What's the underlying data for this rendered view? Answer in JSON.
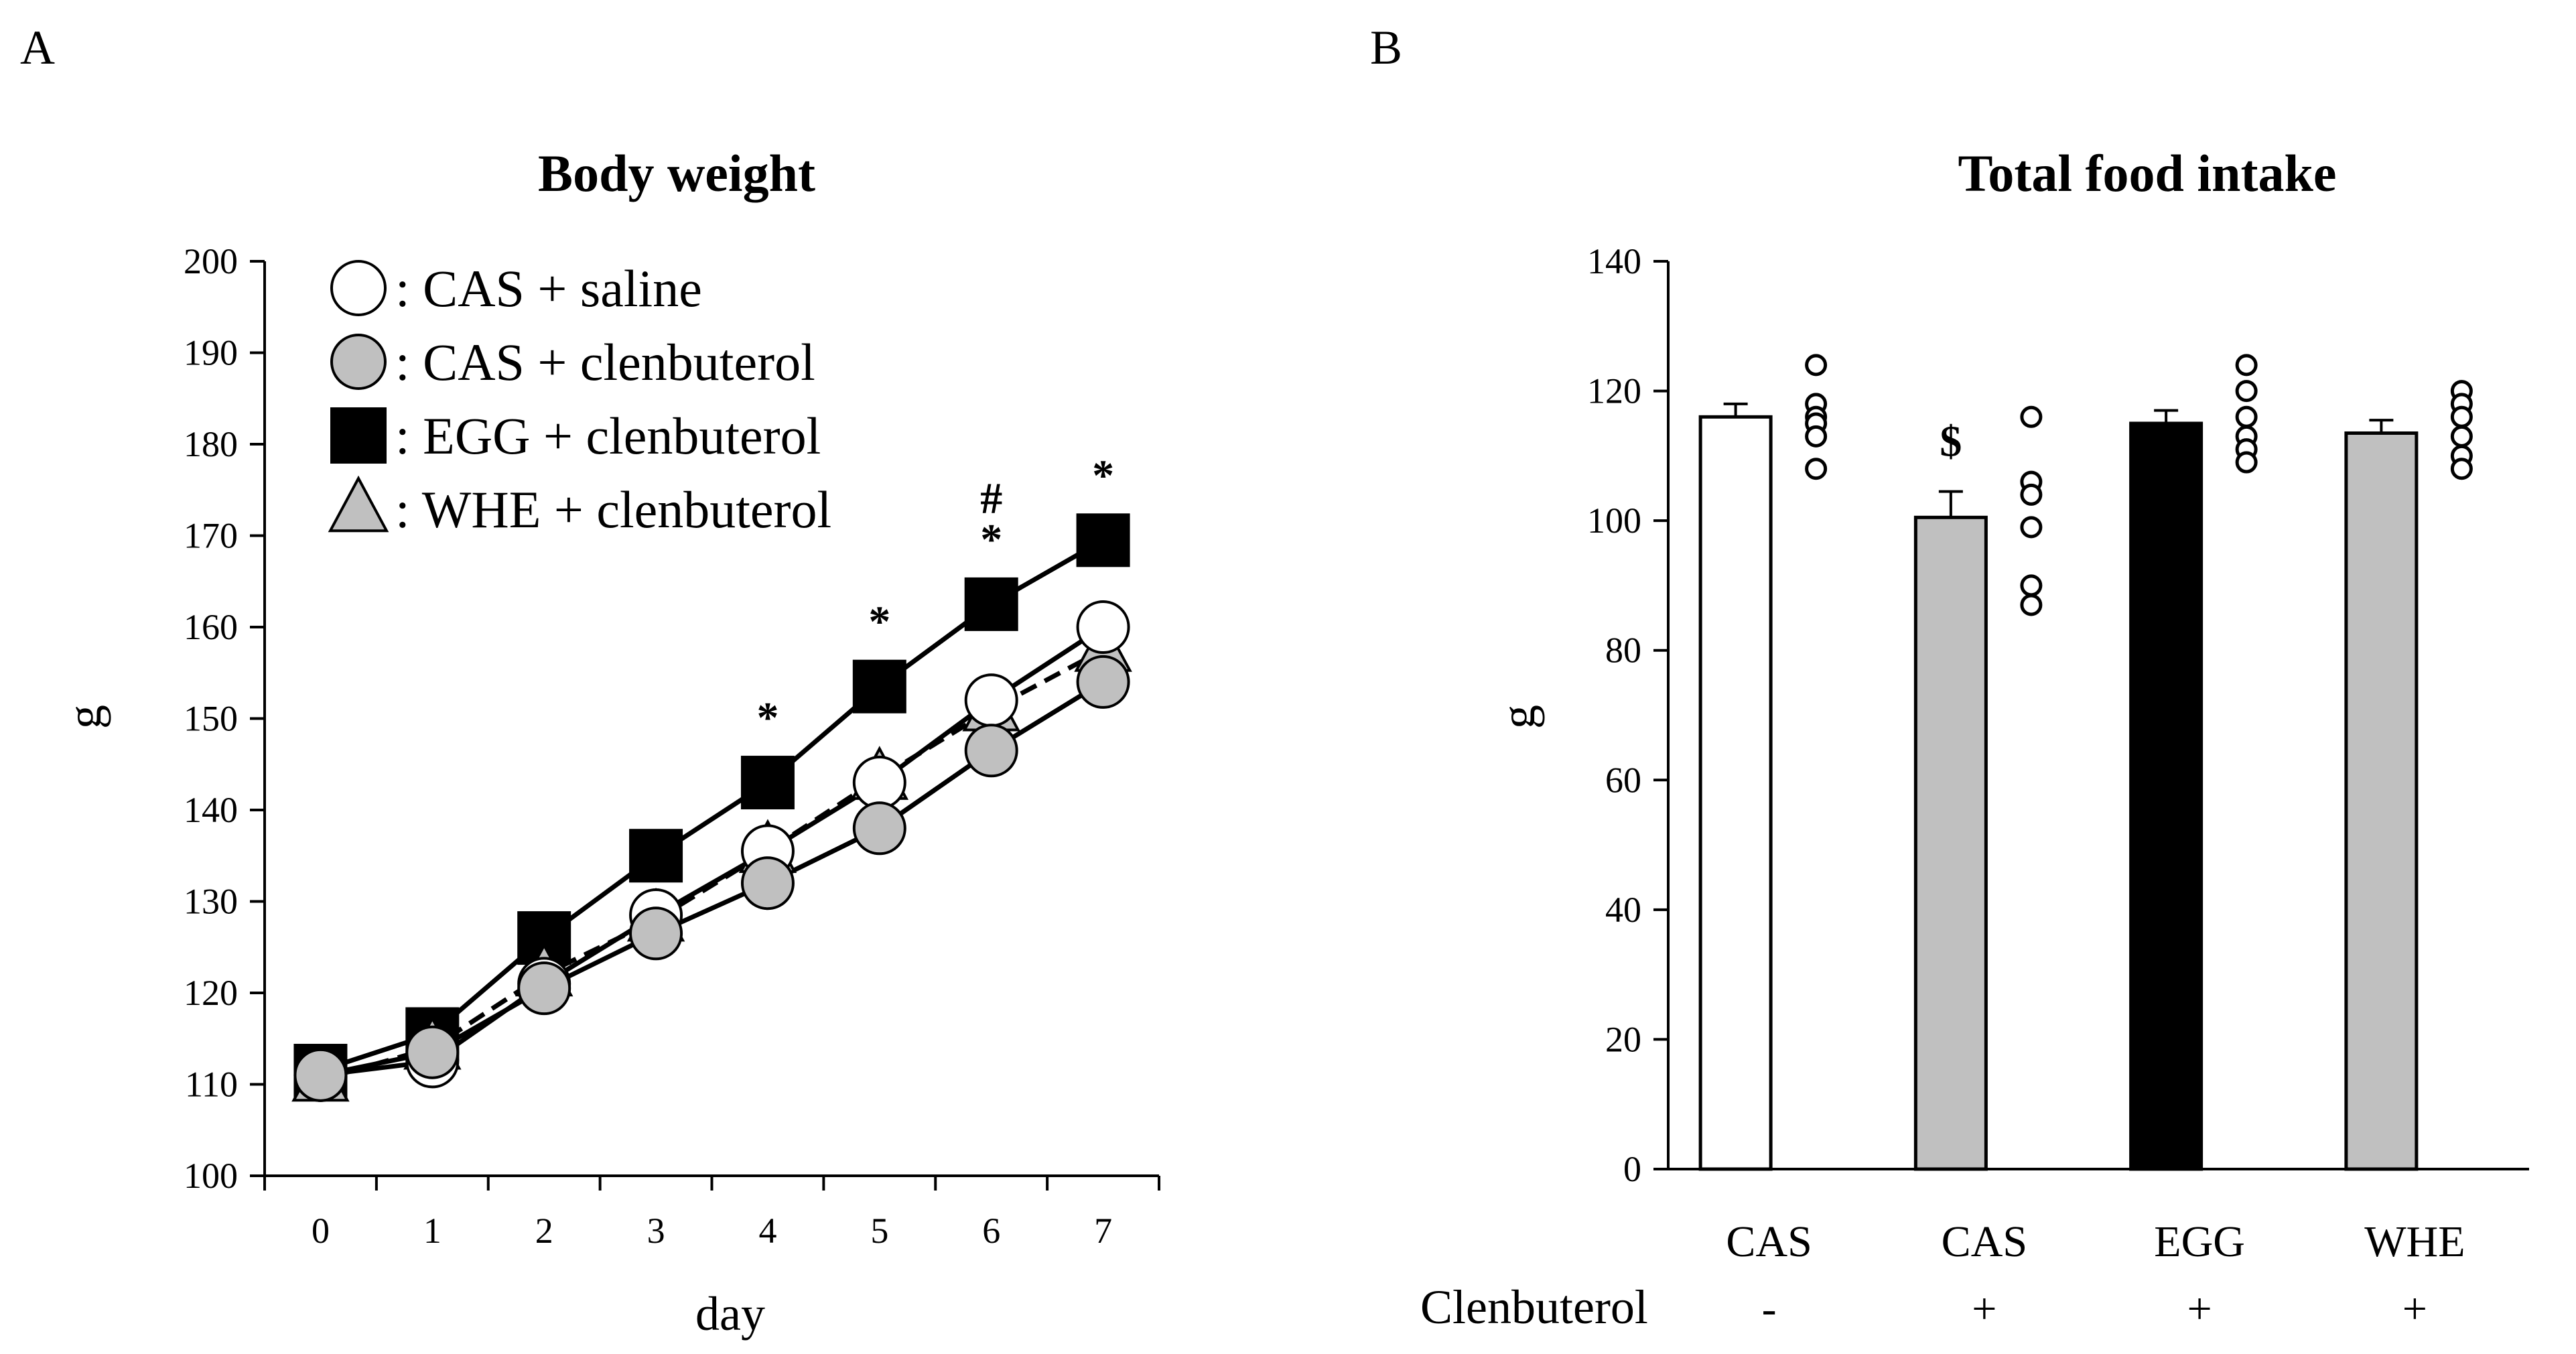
{
  "panels": {
    "a": {
      "letter": "A"
    },
    "b": {
      "letter": "B"
    }
  },
  "chart_data": [
    {
      "type": "line",
      "title": "Body weight",
      "xlabel": "day",
      "ylabel": "g",
      "x": [
        0,
        1,
        2,
        3,
        4,
        5,
        6,
        7
      ],
      "xlim": [
        -0.5,
        7.5
      ],
      "ylim": [
        100,
        200
      ],
      "yticks": [
        100,
        110,
        120,
        130,
        140,
        150,
        160,
        170,
        180,
        190,
        200
      ],
      "legend_position": "top-left",
      "series": [
        {
          "name": ": CAS + saline",
          "marker": "circle",
          "fill": "#ffffff",
          "line": "solid",
          "values": [
            111,
            112.5,
            121,
            128.5,
            135.5,
            143,
            152,
            160
          ],
          "errors": [
            1,
            1,
            1,
            1,
            1,
            1,
            1,
            2.5
          ]
        },
        {
          "name": ": CAS + clenbuterol",
          "marker": "circle",
          "fill": "#c0c0c0",
          "line": "solid",
          "values": [
            111,
            113.5,
            120.5,
            126.5,
            132,
            138,
            146.5,
            154
          ],
          "errors": [
            1,
            1,
            1,
            1,
            1,
            1,
            1,
            1
          ]
        },
        {
          "name": ": EGG + clenbuterol",
          "marker": "square",
          "fill": "#000000",
          "line": "solid",
          "values": [
            111.5,
            115.5,
            126,
            135,
            143,
            153.5,
            162.5,
            169.5
          ],
          "errors": [
            1,
            1,
            1,
            1,
            1,
            1,
            1.5,
            2.5
          ]
        },
        {
          "name": ": WHE + clenbuterol",
          "marker": "triangle",
          "fill": "#c0c0c0",
          "line": "dashed",
          "values": [
            110.5,
            114,
            122,
            128,
            135.5,
            143.5,
            151,
            157.5
          ],
          "errors": [
            1,
            1,
            1,
            1,
            1,
            1,
            1,
            1
          ]
        }
      ],
      "annotations": [
        {
          "x": 4,
          "y": 148.5,
          "text": "*"
        },
        {
          "x": 5,
          "y": 159,
          "text": "*"
        },
        {
          "x": 6,
          "y": 168,
          "text": "*"
        },
        {
          "x": 6,
          "y": 172.5,
          "text": "#"
        },
        {
          "x": 7,
          "y": 175,
          "text": "*"
        }
      ]
    },
    {
      "type": "bar",
      "title": "Total food intake",
      "ylabel": "g",
      "categories": [
        "CAS",
        "CAS",
        "EGG",
        "WHE"
      ],
      "treatment_label": "Clenbuterol",
      "treatment": [
        "-",
        "+",
        "+",
        "+"
      ],
      "values": [
        116,
        100.5,
        115,
        113.5
      ],
      "errors": [
        2,
        4,
        2,
        2
      ],
      "bar_colors": [
        "#ffffff",
        "#c0c0c0",
        "#000000",
        "#c0c0c0"
      ],
      "ylim": [
        0,
        140
      ],
      "yticks": [
        0,
        20,
        40,
        60,
        80,
        100,
        120,
        140
      ],
      "individual_points": [
        [
          124,
          118,
          116,
          115,
          113,
          108
        ],
        [
          116,
          106,
          104,
          99,
          90,
          87
        ],
        [
          124,
          120,
          116,
          113,
          111,
          109
        ],
        [
          120,
          118,
          116,
          113,
          110,
          108
        ]
      ],
      "annotations": [
        {
          "category_index": 1,
          "y": 110,
          "text": "$"
        }
      ]
    }
  ]
}
